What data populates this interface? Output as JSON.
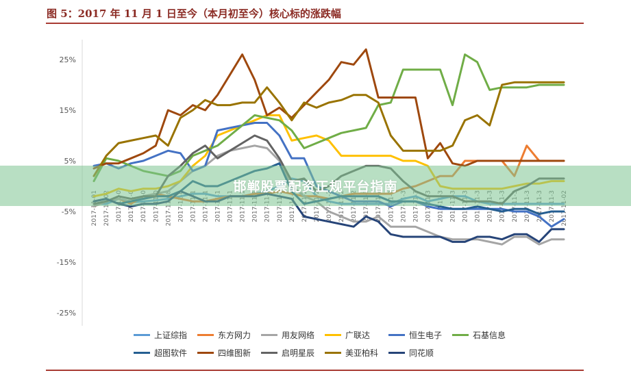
{
  "figure": {
    "title": "图 5：2017 年 11 月 1 日至今（本月初至今）核心标的涨跌幅"
  },
  "watermark": {
    "text": "邯郸股票配资正规平台指南"
  },
  "chart_data": {
    "type": "line",
    "title": "图 5：2017 年 11 月 1 日至今（本月初至今）核心标的涨跌幅",
    "xlabel": "",
    "ylabel": "",
    "ylim": [
      -25,
      30
    ],
    "y_ticks": [
      "25%",
      "15%",
      "5%",
      "-5%",
      "-15%",
      "-25%"
    ],
    "y_tick_values": [
      25,
      15,
      5,
      -5,
      -15,
      -25
    ],
    "grid": false,
    "legend_position": "bottom",
    "x": [
      "2017-11-01",
      "2017-11-02",
      "2017-11-03",
      "2017-11-06",
      "2017-11-07",
      "2017-11-08",
      "2017-11-09",
      "2017-11-10",
      "2017-11-13",
      "2017-11-14",
      "2017-11-15",
      "2017-11-16",
      "2017-11-17",
      "2017-11-20",
      "2017-11-21",
      "2017-11-22",
      "2017-11-23",
      "2017-11-24",
      "2017-11-27",
      "2017-11-28",
      "2017-11-29",
      "2017-11-30",
      "2017-12-01",
      "2017-12-04",
      "2017-12-05",
      "2017-12-06",
      "2017-12-07",
      "2017-12-08",
      "2017-12-11",
      "2017-12-12",
      "2017-12-13",
      "2017-12-14",
      "2017-12-15",
      "2017-12-18",
      "2017-12-19",
      "2017-12-20",
      "2017-12-21",
      "2017-12-22",
      "2018-01-02"
    ],
    "x_tick_labels": [
      "2017-11-01",
      "2017-11-02",
      "2017-11-0",
      "2017-11-0",
      "2017-11-0",
      "2017-11-0",
      "2017-11-08",
      "2017-11-0",
      "2017-11-1",
      "2017-11-1",
      "2017-11-1",
      "2017-11-1",
      "2017-11-1",
      "2017-11-1",
      "2017-11-1",
      "2017-11-2",
      "2017-11-2",
      "2017-11-2",
      "2017-11-2",
      "2017-11-2",
      "2017-11-2",
      "2017-11-2",
      "2017-11-2",
      "2017-11-2",
      "2017-11-2",
      "2017-11-3",
      "2017-11-3",
      "2017-11-3",
      "2017-11-3",
      "2017-11-3",
      "2017-11-3",
      "2017-11-3",
      "2017-11-3",
      "2017-11-3",
      "2017-11-3",
      "2017-11-3",
      "2017-11-3",
      "2017-11-3",
      "2017-11-02"
    ],
    "series": [
      {
        "name": "上证综指",
        "color": "#5b9bd5",
        "values": [
          -3.5,
          -3.5,
          -2.5,
          -3.2,
          -3,
          -2.8,
          -2.5,
          -2,
          -1.5,
          -1.5,
          -2,
          -2,
          -2,
          -1.5,
          -1,
          0,
          1.5,
          1,
          -2,
          -3,
          -3.5,
          -3.5,
          -3.5,
          -3.5,
          -3.5,
          -2.5,
          -2,
          -3,
          -2.5,
          -2,
          -2,
          -3,
          -3.5,
          -3.5,
          -3.5,
          -3.5,
          -3.5,
          -3.5,
          -3.5
        ]
      },
      {
        "name": "东方网力",
        "color": "#ed7d31",
        "values": [
          -4,
          -3,
          -2.5,
          -3.5,
          -2,
          -1.5,
          -2,
          -2.5,
          -3,
          -3,
          -2.5,
          -2,
          -2,
          -1.5,
          -1.5,
          -1,
          -1.5,
          -2,
          -2,
          -2.5,
          -2,
          -1.5,
          -1.5,
          -1.5,
          -1.5,
          -0.5,
          0,
          1,
          2,
          2,
          5,
          5,
          5,
          5,
          2,
          8,
          5,
          5,
          5
        ]
      },
      {
        "name": "用友网络",
        "color": "#a5a5a5",
        "values": [
          -4,
          -3,
          -2.5,
          -3,
          -2,
          -1.5,
          -1,
          1,
          3,
          4,
          6,
          7,
          7.5,
          8,
          7.5,
          5,
          0,
          -2,
          -3,
          -5,
          -6,
          -7,
          -7,
          -6,
          -8,
          -8,
          -8,
          -9,
          -10,
          -10.5,
          -10.5,
          -10.5,
          -11,
          -11.5,
          -10,
          -10,
          -11.5,
          -10.5,
          -10.5
        ]
      },
      {
        "name": "广联达",
        "color": "#ffc000",
        "values": [
          -2,
          -1.5,
          -0.5,
          -1,
          -0.5,
          -0.5,
          0,
          1,
          4,
          6,
          10,
          11,
          12,
          13,
          14,
          14,
          9,
          9.5,
          10,
          9,
          6,
          6,
          6,
          6,
          6,
          5,
          5,
          4,
          0,
          -0.5,
          -0.5,
          -0.5,
          -0.5,
          -0.5,
          0,
          0.5,
          0.5,
          1,
          1
        ]
      },
      {
        "name": "恒生电子",
        "color": "#4472c4",
        "values": [
          4,
          4.5,
          3.5,
          4.5,
          5,
          6,
          7,
          6.5,
          3,
          4,
          11,
          11.5,
          12,
          12.5,
          12.5,
          10,
          5.5,
          5.5,
          0,
          -1,
          -2,
          -3,
          -3,
          -3,
          -4,
          -3,
          -3,
          -4,
          -4.5,
          -4.5,
          -4.5,
          -4.5,
          -4.5,
          -4.5,
          -5,
          -5,
          -6,
          -8,
          -6.5
        ]
      },
      {
        "name": "石基信息",
        "color": "#70ad47",
        "values": [
          1,
          5.5,
          5,
          4,
          3,
          2.5,
          2,
          3,
          6,
          7,
          8,
          10,
          12,
          14,
          13.5,
          13,
          11,
          7.5,
          8.5,
          9.5,
          10.5,
          11,
          11.5,
          16,
          16.5,
          23,
          23,
          23,
          23,
          16,
          26,
          24.5,
          19,
          19.5,
          19.5,
          19.5,
          20,
          20,
          20
        ]
      },
      {
        "name": "超图软件",
        "color": "#255e91",
        "values": [
          -3,
          -2.5,
          -3.5,
          -3,
          -2.5,
          -2,
          -2,
          -1,
          1,
          0,
          0,
          1,
          2,
          3,
          3.5,
          4.5,
          -1,
          -3.5,
          -3,
          -2.5,
          -2,
          -2,
          -2,
          -2,
          -3,
          -3,
          -3,
          -3.5,
          -4,
          -4.5,
          -4.5,
          -4,
          -4.5,
          -5,
          -4.5,
          -4.5,
          -5.5,
          -5,
          -5
        ]
      },
      {
        "name": "四维图新",
        "color": "#9e480e",
        "values": [
          3.5,
          4.5,
          4.5,
          5.5,
          6.5,
          8,
          15,
          14,
          16,
          15,
          18,
          22,
          26,
          21,
          14,
          15.5,
          13.5,
          16,
          18.5,
          21,
          24.5,
          24,
          27,
          17.5,
          17.5,
          17.5,
          17.5,
          5.5,
          8.5,
          4.5,
          4,
          5,
          5,
          5,
          5,
          5,
          5,
          5,
          5
        ]
      },
      {
        "name": "启明星辰",
        "color": "#636363",
        "values": [
          -3.5,
          -3,
          -2,
          -2.5,
          -2,
          -2,
          2,
          4,
          6.5,
          8,
          5.5,
          7,
          8.5,
          10,
          9,
          5.5,
          1,
          1.5,
          -1,
          0,
          2,
          3,
          4,
          4,
          3.5,
          1,
          -1,
          -2,
          -2,
          -2,
          -3,
          -3,
          -3,
          -3.5,
          -1,
          0,
          1.5,
          1.5,
          1.5
        ]
      },
      {
        "name": "美亚柏科",
        "color": "#997300",
        "values": [
          2,
          6,
          8.5,
          9,
          9.5,
          10,
          8,
          13.5,
          15,
          17,
          16,
          16,
          16.5,
          16.5,
          19.5,
          16.5,
          13,
          16.5,
          15.5,
          16.5,
          17,
          18,
          18,
          16.5,
          10,
          7,
          7,
          7,
          7,
          8,
          13,
          14,
          12,
          20,
          20.5,
          20.5,
          20.5,
          20.5,
          20.5
        ]
      },
      {
        "name": "同花顺",
        "color": "#264478",
        "values": [
          -3,
          -2.5,
          -3.5,
          -4,
          -3.5,
          -3.5,
          -3,
          -1,
          -2,
          -3,
          -3,
          -2,
          -2,
          -2,
          -1.5,
          -2,
          -2.5,
          -6,
          -6.5,
          -7,
          -7.5,
          -8,
          -6,
          -7,
          -9.5,
          -10,
          -10,
          -10,
          -10,
          -11,
          -11,
          -10,
          -10,
          -10.5,
          -9.5,
          -9.5,
          -11,
          -8.5,
          -8.5
        ]
      }
    ]
  }
}
